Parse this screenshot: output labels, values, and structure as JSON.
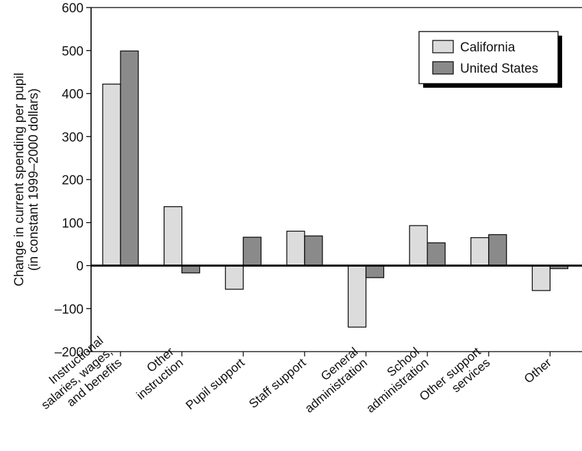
{
  "chart_data": {
    "type": "bar",
    "title": "",
    "xlabel": "",
    "ylabel": [
      "Change in current spending per pupil",
      "(in constant 1999–2000 dollars)"
    ],
    "ylim": [
      -200,
      600
    ],
    "yticks": [
      600,
      500,
      400,
      300,
      200,
      100,
      0,
      -100,
      -200
    ],
    "ytick_labels": [
      "600",
      "500",
      "400",
      "300",
      "200",
      "100",
      "0",
      "–100",
      "–200"
    ],
    "grid": false,
    "legend_position": "top-right",
    "categories": [
      [
        "Instructional",
        "salaries, wages,",
        "and benefits"
      ],
      [
        "Other",
        "instruction"
      ],
      [
        "Pupil support"
      ],
      [
        "Staff support"
      ],
      [
        "General",
        "administration"
      ],
      [
        "School",
        "administration"
      ],
      [
        "Other support",
        "services"
      ],
      [
        "Other"
      ]
    ],
    "series": [
      {
        "name": "California",
        "color": "#dcdcdc",
        "values": [
          422,
          137,
          -55,
          80,
          -143,
          93,
          65,
          -58
        ]
      },
      {
        "name": "United States",
        "color": "#8a8a8a",
        "values": [
          499,
          -17,
          66,
          69,
          -28,
          53,
          72,
          -7
        ]
      }
    ]
  }
}
